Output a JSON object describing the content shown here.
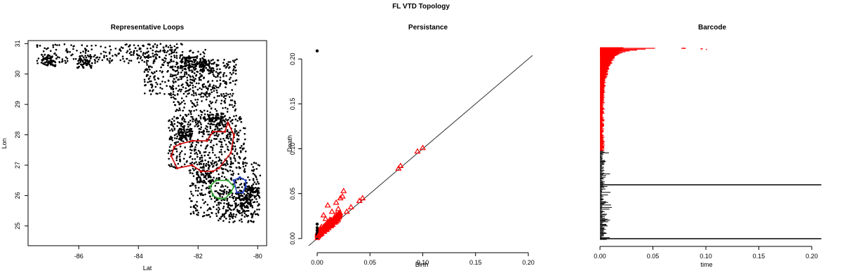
{
  "title": "FL VTD Topology",
  "colors": {
    "dim0": "#000000",
    "dim1": "#ff0000",
    "loop_red": "#cc0000",
    "loop_green": "#2ca02c",
    "loop_blue": "#1f3fbf"
  },
  "chart_data": [
    {
      "type": "scatter",
      "title": "Representative Loops",
      "xlabel": "Lat",
      "ylabel": "Lon",
      "xlim": [
        -87.7,
        -79.7
      ],
      "ylim": [
        24.35,
        31.1
      ],
      "xticks": [
        -86,
        -84,
        -82,
        -80
      ],
      "yticks": [
        25,
        26,
        27,
        28,
        29,
        30,
        31
      ],
      "grid": false,
      "series": [
        {
          "color": "#cc0000",
          "x": [
            -82.6,
            -82.2,
            -81.7,
            -81.5,
            -81.1,
            -81.0,
            -80.8,
            -80.9,
            -81.3,
            -81.5,
            -81.9,
            -82.2,
            -82.7,
            -82.9,
            -82.8,
            -82.6
          ],
          "y": [
            27.7,
            27.8,
            27.8,
            28.1,
            28.1,
            28.4,
            28.0,
            27.4,
            26.9,
            26.8,
            26.8,
            27.0,
            26.9,
            27.3,
            27.6,
            27.7
          ]
        },
        {
          "color": "#2ca02c",
          "x": [
            -81.6,
            -81.4,
            -81.0,
            -80.8,
            -80.9,
            -81.1,
            -81.3,
            -81.5,
            -81.6
          ],
          "y": [
            26.3,
            26.5,
            26.5,
            26.3,
            26.1,
            25.9,
            25.9,
            26.0,
            26.3
          ]
        },
        {
          "color": "#1f3fbf",
          "x": [
            -80.8,
            -80.6,
            -80.4,
            -80.4,
            -80.5,
            -80.7,
            -80.8
          ],
          "y": [
            26.5,
            26.6,
            26.5,
            26.3,
            26.1,
            26.1,
            26.5
          ]
        }
      ]
    },
    {
      "type": "scatter",
      "title": "Persistance",
      "xlabel": "Birth",
      "ylabel": "Death",
      "xlim": [
        -0.008,
        0.208
      ],
      "ylim": [
        -0.008,
        0.215
      ],
      "xticks": [
        0.0,
        0.05,
        0.1,
        0.15,
        0.2
      ],
      "yticks": [
        0.0,
        0.05,
        0.1,
        0.15,
        0.2
      ],
      "xtick_labels": [
        "0.00",
        "0.05",
        "0.10",
        "0.15",
        "0.20"
      ],
      "ytick_labels": [
        "0.00",
        "0.05",
        "0.10",
        "0.15",
        "0.20"
      ],
      "grid": false,
      "series": [
        {
          "marker": "circle",
          "color": "#000000",
          "x": [
            0,
            0,
            0,
            0,
            0,
            0,
            0,
            0
          ],
          "y": [
            0.209,
            0.016,
            0.012,
            0.009,
            0.006,
            0.004,
            0.002,
            0.001
          ]
        },
        {
          "marker": "triangle",
          "color": "#ff0000",
          "x": [
            0.1,
            0.095,
            0.079,
            0.077,
            0.043,
            0.04,
            0.032,
            0.028,
            0.025,
            0.024,
            0.022,
            0.021,
            0.02,
            0.018,
            0.016,
            0.015,
            0.014,
            0.013,
            0.012,
            0.011,
            0.01,
            0.009,
            0.008,
            0.007,
            0.006,
            0.005,
            0.004,
            0.003,
            0.002,
            0.001,
            0.018,
            0.014,
            0.01,
            0.006,
            0.02,
            0.012,
            0.008,
            0.004,
            0.016,
            0.009
          ],
          "y": [
            0.101,
            0.097,
            0.081,
            0.078,
            0.045,
            0.042,
            0.035,
            0.03,
            0.053,
            0.047,
            0.045,
            0.028,
            0.033,
            0.027,
            0.022,
            0.021,
            0.016,
            0.02,
            0.014,
            0.018,
            0.013,
            0.016,
            0.012,
            0.011,
            0.009,
            0.008,
            0.006,
            0.005,
            0.004,
            0.003,
            0.04,
            0.03,
            0.037,
            0.026,
            0.025,
            0.021,
            0.022,
            0.013,
            0.019,
            0.01
          ]
        }
      ]
    },
    {
      "type": "barcode",
      "title": "Barcode",
      "xlabel": "time",
      "xlim": [
        -0.008,
        0.21
      ],
      "xticks": [
        0.0,
        0.05,
        0.1,
        0.15,
        0.2
      ],
      "xtick_labels": [
        "0.00",
        "0.05",
        "0.10",
        "0.15",
        "0.20"
      ],
      "grid": false,
      "dim0_long_bars": [
        0.209,
        0.209
      ],
      "dim1_long_bars": [
        0.052,
        0.043,
        0.035,
        0.028,
        0.024,
        0.021,
        0.019,
        0.017,
        0.015
      ],
      "dim1_far_bars": [
        [
          0.077,
          0.081
        ],
        [
          0.095,
          0.097
        ],
        [
          0.1,
          0.101
        ]
      ]
    }
  ]
}
